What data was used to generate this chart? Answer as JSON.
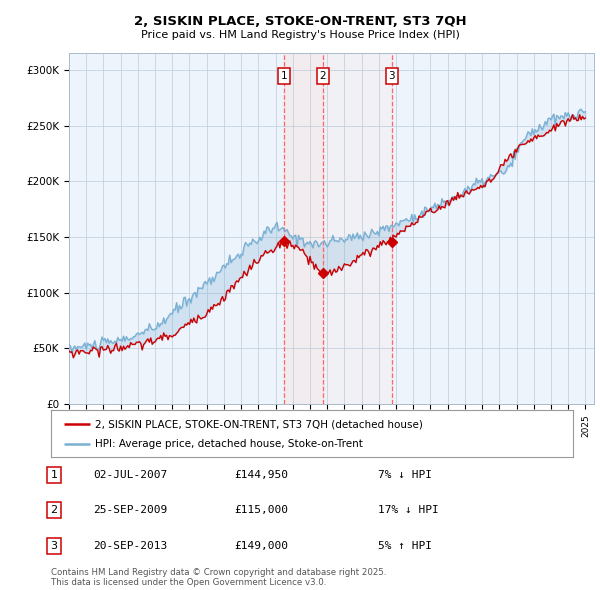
{
  "title": "2, SISKIN PLACE, STOKE-ON-TRENT, ST3 7QH",
  "subtitle": "Price paid vs. HM Land Registry's House Price Index (HPI)",
  "ylabel_ticks": [
    "£0",
    "£50K",
    "£100K",
    "£150K",
    "£200K",
    "£250K",
    "£300K"
  ],
  "ytick_values": [
    0,
    50000,
    100000,
    150000,
    200000,
    250000,
    300000
  ],
  "ylim": [
    0,
    315000
  ],
  "xlim_start": 1995.0,
  "xlim_end": 2025.5,
  "legend_line1": "2, SISKIN PLACE, STOKE-ON-TRENT, ST3 7QH (detached house)",
  "legend_line2": "HPI: Average price, detached house, Stoke-on-Trent",
  "red_line_color": "#cc0000",
  "blue_line_color": "#7ab0d4",
  "fill_color": "#ddeeff",
  "dashed_line_color": "#ff6666",
  "dashed_fill_color": "#f0d8d8",
  "transactions": [
    {
      "num": 1,
      "date": "02-JUL-2007",
      "price": 144950,
      "pct": "7%",
      "dir": "↓",
      "year": 2007.5
    },
    {
      "num": 2,
      "date": "25-SEP-2009",
      "price": 115000,
      "pct": "17%",
      "dir": "↓",
      "year": 2009.75
    },
    {
      "num": 3,
      "date": "20-SEP-2013",
      "price": 149000,
      "pct": "5%",
      "dir": "↑",
      "year": 2013.75
    }
  ],
  "footer": "Contains HM Land Registry data © Crown copyright and database right 2025.\nThis data is licensed under the Open Government Licence v3.0.",
  "background_color": "#ffffff",
  "plot_bg_color": "#eef4fb"
}
